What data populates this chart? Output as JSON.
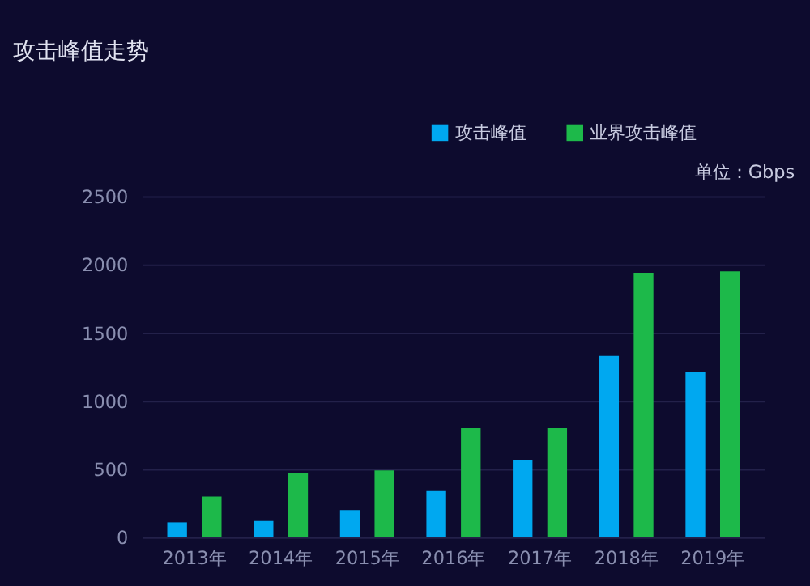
{
  "chart_data": {
    "type": "bar",
    "title": "攻击峰值走势",
    "annotations": [
      "单位：Gbps"
    ],
    "categories": [
      "2013年",
      "2014年",
      "2015年",
      "2016年",
      "2017年",
      "2018年",
      "2019年"
    ],
    "series": [
      {
        "name": "攻击峰值",
        "color": "#00a8f0",
        "values": [
          110,
          120,
          200,
          340,
          570,
          1330,
          1210
        ]
      },
      {
        "name": "业界攻击峰值",
        "color": "#1db94a",
        "values": [
          300,
          470,
          490,
          800,
          800,
          1940,
          1950
        ]
      }
    ],
    "ylim": [
      0,
      2500
    ],
    "yticks": [
      0,
      500,
      1000,
      1500,
      2000,
      2500
    ],
    "grid": "y",
    "legend": "top right"
  }
}
